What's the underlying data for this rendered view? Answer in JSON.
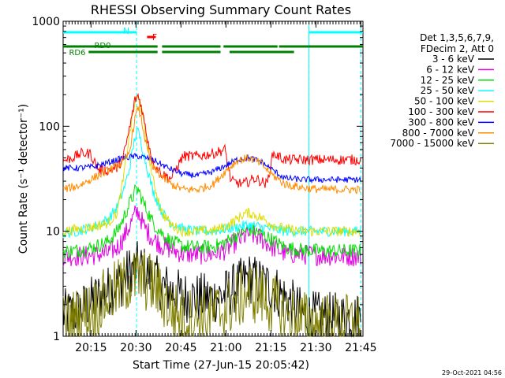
{
  "chart_data": {
    "type": "line",
    "title": "RHESSI Observing Summary Count Rates",
    "xlabel": "Start Time (27-Jun-15 20:05:42)",
    "ylabel": "Count Rate (s⁻¹ detector⁻¹)",
    "y_scale": "log",
    "ylim": [
      1,
      1000
    ],
    "xlim_minutes": [
      0,
      100
    ],
    "x_ticks": [
      {
        "label": "20:15",
        "minute": 9.3
      },
      {
        "label": "20:30",
        "minute": 24.3
      },
      {
        "label": "20:45",
        "minute": 39.3
      },
      {
        "label": "21:00",
        "minute": 54.3
      },
      {
        "label": "21:15",
        "minute": 69.3
      },
      {
        "label": "21:30",
        "minute": 84.3
      },
      {
        "label": "21:45",
        "minute": 99.3
      }
    ],
    "y_ticks": [
      {
        "label": "1",
        "value": 1
      },
      {
        "label": "10",
        "value": 10
      },
      {
        "label": "100",
        "value": 100
      },
      {
        "label": "1000",
        "value": 1000
      }
    ],
    "legend_header": [
      "Det 1,3,5,6,7,9,",
      "FDecim 2, Att 0"
    ],
    "series": [
      {
        "name": "3 - 6 keV",
        "color": "#000000",
        "x": [
          0,
          5,
          10,
          15,
          20,
          22,
          25,
          30,
          33,
          36,
          40,
          45,
          50,
          54,
          58,
          62,
          66,
          70,
          74,
          80,
          86,
          92,
          98
        ],
        "y": [
          1.6,
          1.7,
          2.2,
          2.7,
          3.4,
          4.1,
          4.6,
          3.6,
          3.0,
          2.7,
          2.4,
          2.3,
          2.3,
          2.5,
          3.0,
          3.6,
          3.2,
          2.9,
          2.3,
          1.6,
          1.5,
          1.5,
          1.5
        ]
      },
      {
        "name": "6 - 12 keV",
        "color": "#e000e0",
        "x": [
          0,
          5,
          10,
          15,
          18,
          20,
          22,
          24,
          25,
          27,
          30,
          33,
          36,
          40,
          45,
          50,
          54,
          58,
          62,
          66,
          70,
          74,
          80,
          86,
          92,
          98
        ],
        "y": [
          5.8,
          5.8,
          5.9,
          6.2,
          7.0,
          8.5,
          11,
          14.5,
          15.5,
          11,
          8.5,
          7.3,
          6.7,
          6.1,
          6.0,
          6.1,
          6.6,
          8.0,
          9.5,
          8.5,
          7.0,
          6.2,
          6.0,
          5.9,
          5.8,
          5.8
        ]
      },
      {
        "name": "12 - 25 keV",
        "color": "#00e000",
        "x": [
          0,
          5,
          10,
          15,
          18,
          20,
          22,
          24,
          25,
          27,
          30,
          33,
          36,
          40,
          45,
          50,
          54,
          58,
          62,
          66,
          70,
          74,
          80,
          86,
          92,
          98
        ],
        "y": [
          6.4,
          6.6,
          7.0,
          8.0,
          10,
          13,
          18,
          24,
          25,
          18,
          12,
          9.5,
          8.0,
          7.2,
          7.0,
          7.1,
          7.8,
          9.2,
          10.5,
          9.5,
          8.2,
          7.0,
          6.6,
          6.5,
          6.5,
          6.5
        ]
      },
      {
        "name": "25 - 50 keV",
        "color": "#00ffff",
        "x": [
          0,
          5,
          10,
          15,
          18,
          20,
          22,
          24,
          25,
          26,
          28,
          30,
          33,
          36,
          40,
          45,
          50,
          54,
          58,
          62,
          66,
          70,
          74,
          80,
          86,
          92,
          98
        ],
        "y": [
          9.5,
          10,
          11,
          13,
          17,
          24,
          38,
          80,
          90,
          70,
          40,
          24,
          15,
          12,
          10.5,
          10,
          10,
          10.5,
          11,
          11.5,
          11,
          10.5,
          10,
          10,
          10,
          10,
          10
        ]
      },
      {
        "name": "50 - 100 keV",
        "color": "#dddd00",
        "x": [
          0,
          5,
          10,
          15,
          18,
          20,
          22,
          24,
          25,
          26,
          28,
          30,
          33,
          36,
          40,
          45,
          50,
          54,
          58,
          60,
          62,
          66,
          70,
          74,
          80,
          86,
          92,
          98
        ],
        "y": [
          10,
          10.5,
          11,
          12,
          15,
          30,
          80,
          170,
          185,
          150,
          70,
          30,
          15,
          11.5,
          10,
          10,
          10.2,
          11,
          13,
          14.5,
          15,
          13.5,
          11.5,
          10.5,
          10,
          10,
          10,
          10
        ]
      },
      {
        "name": "100 - 300 keV",
        "color": "#ff0000",
        "x": [
          0,
          3,
          6,
          9,
          12,
          15,
          18,
          20,
          22,
          24,
          25,
          26,
          28,
          30,
          33,
          36,
          40,
          45,
          50,
          54,
          56,
          60,
          62,
          64,
          68,
          70,
          74,
          80,
          86,
          92,
          98
        ],
        "y": [
          47,
          50,
          55,
          55,
          38,
          38,
          40,
          50,
          90,
          180,
          195,
          160,
          80,
          45,
          35,
          32,
          52,
          52,
          55,
          60,
          30,
          28,
          30,
          32,
          28,
          55,
          48,
          48,
          48,
          48,
          48
        ]
      },
      {
        "name": "300 - 800 keV",
        "color": "#0000ff",
        "x": [
          0,
          5,
          10,
          15,
          20,
          25,
          30,
          35,
          40,
          45,
          50,
          54,
          58,
          62,
          66,
          70,
          74,
          80,
          86,
          92,
          98
        ],
        "y": [
          40,
          40,
          41,
          45,
          50,
          52,
          48,
          40,
          35,
          34,
          37,
          42,
          48,
          50,
          46,
          38,
          32,
          31,
          31,
          31,
          31
        ]
      },
      {
        "name": "800 - 7000 keV",
        "color": "#ff8c00",
        "x": [
          0,
          5,
          10,
          15,
          20,
          22,
          24,
          25,
          26,
          28,
          30,
          33,
          36,
          40,
          45,
          50,
          54,
          58,
          62,
          66,
          70,
          74,
          80,
          86,
          92,
          98
        ],
        "y": [
          25,
          27,
          32,
          38,
          45,
          55,
          120,
          150,
          120,
          60,
          40,
          33,
          28,
          25,
          25,
          28,
          37,
          47,
          50,
          44,
          34,
          28,
          26,
          25,
          25,
          25
        ]
      },
      {
        "name": "7000 - 15000 keV",
        "color": "#808000",
        "x": [
          0,
          5,
          10,
          15,
          20,
          22,
          25,
          30,
          33,
          36,
          40,
          45,
          50,
          54,
          58,
          62,
          66,
          70,
          74,
          80,
          86,
          92,
          98
        ],
        "y": [
          1.3,
          1.5,
          1.8,
          2.4,
          3.0,
          3.4,
          3.6,
          3.1,
          2.4,
          1.8,
          1.5,
          1.5,
          1.6,
          1.8,
          2.2,
          2.7,
          2.4,
          2.0,
          1.6,
          1.4,
          1.3,
          1.3,
          1.3
        ]
      }
    ],
    "annotations": {
      "attenuator_label": "N",
      "flare_label": "F",
      "decimation_labels": [
        "RD0",
        "RD6"
      ],
      "eclipse_segments_minutes": [
        [
          0,
          24.5
        ],
        [
          82,
          100
        ]
      ],
      "eclipse_marker_minutes": [
        24.5,
        82,
        99.3
      ],
      "flag_segments_minutes": [
        [
          0,
          31.5
        ],
        [
          33,
          52.5
        ],
        [
          53.5,
          71.5
        ],
        [
          72,
          100
        ]
      ],
      "rd6_segment_minutes": [
        [
          0,
          7.5
        ]
      ],
      "flare_segment_minutes": [
        [
          28,
          30.8
        ]
      ]
    },
    "timestamp": "29-Oct-2021 04:56"
  }
}
